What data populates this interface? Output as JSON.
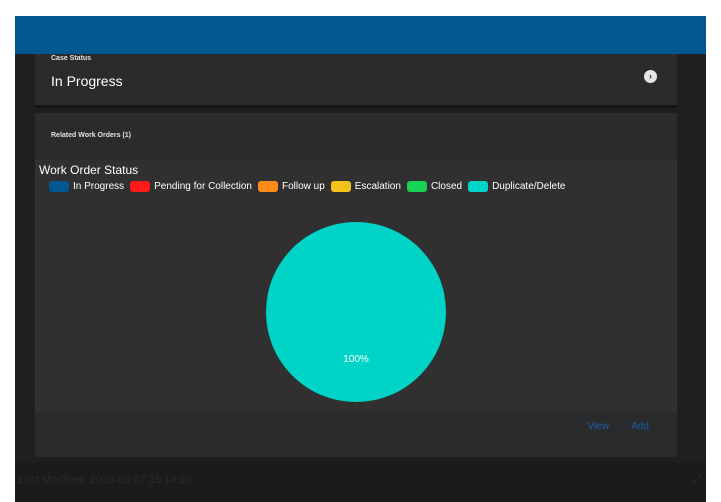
{
  "case_status": {
    "label": "Case Status",
    "value": "In Progress",
    "nav_icon": "chevron-right-circle-icon"
  },
  "related_work_orders": {
    "header": "Related Work Orders (1)",
    "view_label": "View",
    "add_label": "Add"
  },
  "chart_data": {
    "type": "pie",
    "title": "Work Order Status",
    "legend_position": "top-left",
    "series": [
      {
        "name": "In Progress",
        "value": 0,
        "color": "#01578f"
      },
      {
        "name": "Pending for Collection",
        "value": 0,
        "color": "#ff1a1a"
      },
      {
        "name": "Follow up",
        "value": 0,
        "color": "#ff8c1a"
      },
      {
        "name": "Escalation",
        "value": 0,
        "color": "#f2c21a"
      },
      {
        "name": "Closed",
        "value": 0,
        "color": "#19d154"
      },
      {
        "name": "Duplicate/Delete",
        "value": 100,
        "color": "#00d4c6"
      }
    ],
    "data_labels": [
      "100%"
    ]
  },
  "bottom_bar": {
    "text": "Last Modified: 2023-03-27 15:14:10",
    "icon": "expand-icon"
  },
  "colors": {
    "topbar": "#01578f",
    "background": "#1f1f20",
    "card": "#2a2b2d",
    "link": "#1a5fa6"
  }
}
